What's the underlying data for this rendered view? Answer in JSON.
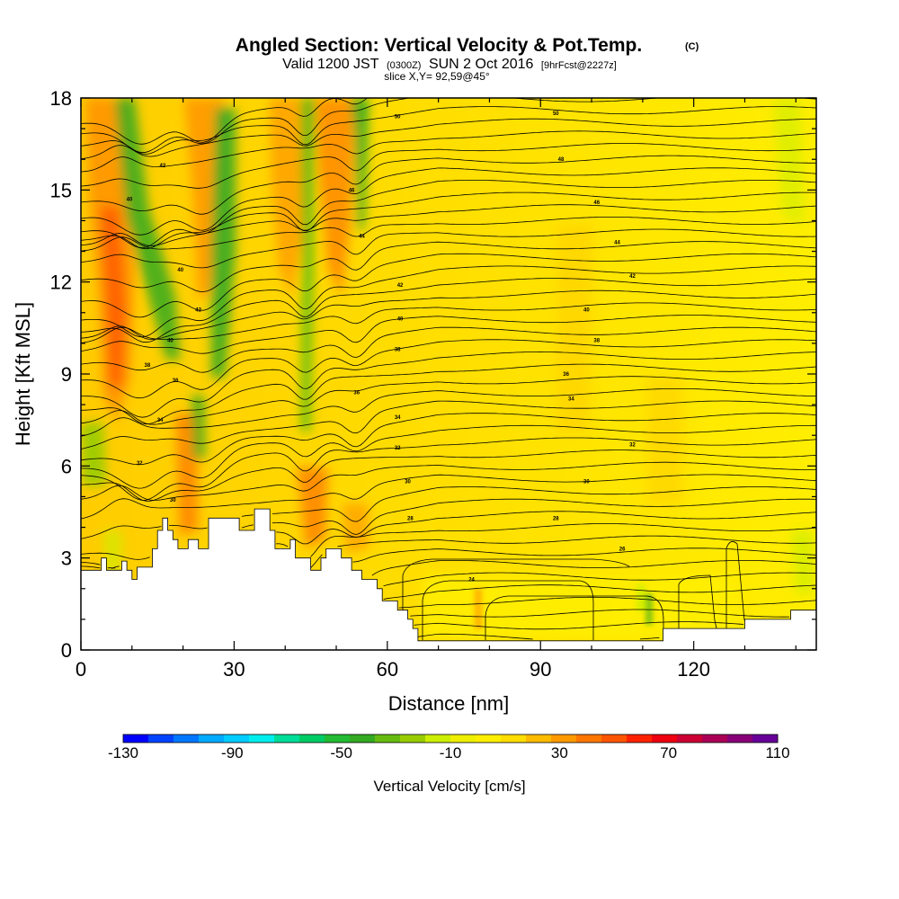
{
  "chart_data": {
    "type": "heatmap",
    "title": "Angled Section: Vertical Velocity & Pot.Temp.",
    "title_unit": "(C)",
    "subtitle": {
      "prefix": "Valid 1200 JST",
      "utc": "(0300Z)",
      "date": "SUN 2 Oct 2016",
      "forecast": "[9hrFcst@2227z]"
    },
    "slice_text": "slice X,Y= 92,59@45°",
    "xlabel": "Distance [nm]",
    "ylabel": "Height [Kft MSL]",
    "xlim": [
      0,
      144
    ],
    "ylim": [
      0,
      18
    ],
    "x_ticks": [
      0,
      30,
      60,
      90,
      120
    ],
    "y_ticks": [
      0,
      3,
      6,
      9,
      12,
      15,
      18
    ],
    "colorbar": {
      "title": "Vertical Velocity [cm/s]",
      "labels": [
        "-130",
        "-90",
        "-50",
        "-10",
        "30",
        "70",
        "110"
      ],
      "colors": [
        "#0000ff",
        "#0044ff",
        "#0077ff",
        "#00aaff",
        "#00ccff",
        "#00eeee",
        "#00dd99",
        "#00cc66",
        "#22bb33",
        "#33aa22",
        "#66bb11",
        "#99cc00",
        "#ccee00",
        "#eeee00",
        "#ffee00",
        "#ffdd00",
        "#ffbb00",
        "#ff9900",
        "#ff7700",
        "#ff5500",
        "#ff2200",
        "#ee0011",
        "#cc0033",
        "#aa0055",
        "#880077",
        "#660099"
      ]
    },
    "terrain_kft": [
      [
        0,
        2.6
      ],
      [
        4,
        2.6
      ],
      [
        4,
        3.0
      ],
      [
        5,
        3.0
      ],
      [
        5,
        2.6
      ],
      [
        8,
        2.6
      ],
      [
        8,
        2.9
      ],
      [
        9,
        2.9
      ],
      [
        9,
        2.6
      ],
      [
        10,
        2.6
      ],
      [
        10,
        2.3
      ],
      [
        11,
        2.3
      ],
      [
        11,
        2.7
      ],
      [
        14,
        2.7
      ],
      [
        14,
        3.3
      ],
      [
        15,
        3.3
      ],
      [
        15,
        3.9
      ],
      [
        16,
        3.9
      ],
      [
        16,
        4.3
      ],
      [
        17,
        4.3
      ],
      [
        17,
        3.9
      ],
      [
        18,
        3.9
      ],
      [
        18,
        3.6
      ],
      [
        19,
        3.6
      ],
      [
        19,
        3.3
      ],
      [
        21,
        3.3
      ],
      [
        21,
        3.6
      ],
      [
        23,
        3.6
      ],
      [
        23,
        3.3
      ],
      [
        25,
        3.3
      ],
      [
        25,
        4.3
      ],
      [
        31,
        4.3
      ],
      [
        31,
        3.9
      ],
      [
        34,
        3.9
      ],
      [
        34,
        4.6
      ],
      [
        37,
        4.6
      ],
      [
        37,
        3.9
      ],
      [
        38,
        3.9
      ],
      [
        38,
        3.3
      ],
      [
        41,
        3.3
      ],
      [
        41,
        3.6
      ],
      [
        42,
        3.6
      ],
      [
        42,
        3.0
      ],
      [
        45,
        3.0
      ],
      [
        45,
        2.6
      ],
      [
        47,
        2.6
      ],
      [
        47,
        3.0
      ],
      [
        48,
        3.0
      ],
      [
        48,
        3.3
      ],
      [
        51,
        3.3
      ],
      [
        51,
        3.0
      ],
      [
        53,
        3.0
      ],
      [
        53,
        2.6
      ],
      [
        55,
        2.6
      ],
      [
        55,
        2.3
      ],
      [
        58,
        2.3
      ],
      [
        58,
        2.0
      ],
      [
        59,
        2.0
      ],
      [
        59,
        1.6
      ],
      [
        62,
        1.6
      ],
      [
        62,
        1.3
      ],
      [
        64,
        1.3
      ],
      [
        64,
        1.0
      ],
      [
        65,
        1.0
      ],
      [
        65,
        0.7
      ],
      [
        66,
        0.7
      ],
      [
        66,
        0.3
      ],
      [
        114,
        0.3
      ],
      [
        114,
        0.7
      ],
      [
        130,
        0.7
      ],
      [
        130,
        1.0
      ],
      [
        139,
        1.0
      ],
      [
        139,
        1.3
      ],
      [
        144,
        1.3
      ]
    ],
    "theta_labels": [
      {
        "x": 9.5,
        "y": 14.7,
        "v": "40"
      },
      {
        "x": 16,
        "y": 15.8,
        "v": "42"
      },
      {
        "x": 19.5,
        "y": 12.4,
        "v": "40"
      },
      {
        "x": 23,
        "y": 11.1,
        "v": "42"
      },
      {
        "x": 17.5,
        "y": 10.1,
        "v": "40"
      },
      {
        "x": 13,
        "y": 9.3,
        "v": "38"
      },
      {
        "x": 18.5,
        "y": 8.8,
        "v": "36"
      },
      {
        "x": 15.5,
        "y": 7.5,
        "v": "34"
      },
      {
        "x": 11.5,
        "y": 6.1,
        "v": "32"
      },
      {
        "x": 18,
        "y": 4.9,
        "v": "30"
      },
      {
        "x": 53,
        "y": 15.0,
        "v": "46"
      },
      {
        "x": 55,
        "y": 13.5,
        "v": "44"
      },
      {
        "x": 62,
        "y": 17.4,
        "v": "50"
      },
      {
        "x": 62.5,
        "y": 11.9,
        "v": "42"
      },
      {
        "x": 62.5,
        "y": 10.8,
        "v": "40"
      },
      {
        "x": 62,
        "y": 9.8,
        "v": "38"
      },
      {
        "x": 54,
        "y": 8.4,
        "v": "36"
      },
      {
        "x": 62,
        "y": 7.6,
        "v": "34"
      },
      {
        "x": 62,
        "y": 6.6,
        "v": "32"
      },
      {
        "x": 64,
        "y": 5.5,
        "v": "30"
      },
      {
        "x": 64.5,
        "y": 4.3,
        "v": "28"
      },
      {
        "x": 76.5,
        "y": 2.3,
        "v": "24"
      },
      {
        "x": 93,
        "y": 17.5,
        "v": "50"
      },
      {
        "x": 94,
        "y": 16.0,
        "v": "48"
      },
      {
        "x": 101,
        "y": 14.6,
        "v": "46"
      },
      {
        "x": 105,
        "y": 13.3,
        "v": "44"
      },
      {
        "x": 108,
        "y": 12.2,
        "v": "42"
      },
      {
        "x": 99,
        "y": 11.1,
        "v": "40"
      },
      {
        "x": 101,
        "y": 10.1,
        "v": "38"
      },
      {
        "x": 95,
        "y": 9.0,
        "v": "36"
      },
      {
        "x": 96,
        "y": 8.2,
        "v": "34"
      },
      {
        "x": 108,
        "y": 6.7,
        "v": "32"
      },
      {
        "x": 99,
        "y": 5.5,
        "v": "30"
      },
      {
        "x": 93,
        "y": 4.3,
        "v": "28"
      },
      {
        "x": 106,
        "y": 3.3,
        "v": "26"
      }
    ]
  }
}
